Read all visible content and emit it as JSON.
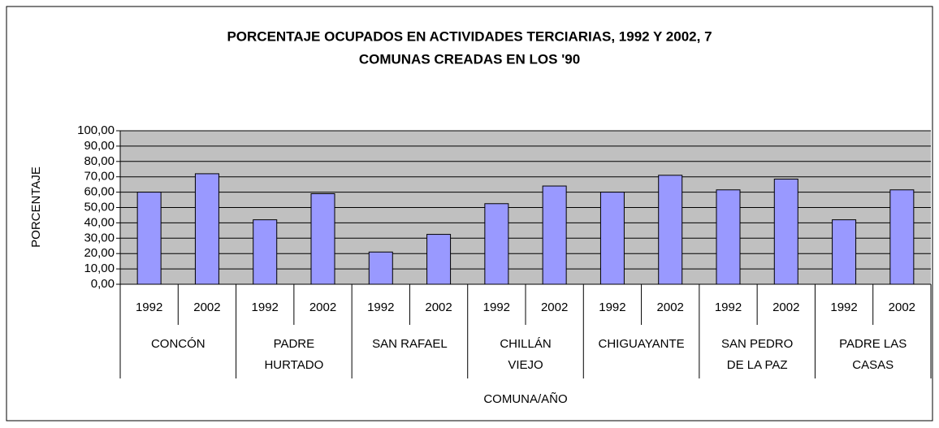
{
  "chart_data": {
    "type": "bar",
    "title": [
      "PORCENTAJE OCUPADOS EN ACTIVIDADES TERCIARIAS, 1992 Y 2002, 7",
      "COMUNAS CREADAS EN LOS '90"
    ],
    "x_label": "COMUNA/AÑO",
    "y_label": "PORCENTAJE",
    "categories": [
      "1992",
      "2002",
      "1992",
      "2002",
      "1992",
      "2002",
      "1992",
      "2002",
      "1992",
      "2002",
      "1992",
      "2002",
      "1992",
      "2002"
    ],
    "groups": [
      [
        "CONCÓN"
      ],
      [
        "PADRE",
        "HURTADO"
      ],
      [
        "SAN RAFAEL"
      ],
      [
        "CHILLÁN",
        "VIEJO"
      ],
      [
        "CHIGUAYANTE"
      ],
      [
        "SAN PEDRO",
        "DE LA PAZ"
      ],
      [
        "PADRE LAS",
        "CASAS"
      ]
    ],
    "values": [
      60,
      72,
      42,
      59,
      21,
      32.5,
      52.5,
      64,
      60,
      71,
      61.5,
      68.5,
      42,
      61.5
    ],
    "color": "#9999ff",
    "ylim": [
      0,
      100
    ],
    "yticks": [
      {
        "value": 0,
        "label": "0,00"
      },
      {
        "value": 10,
        "label": "10,00"
      },
      {
        "value": 20,
        "label": "20,00"
      },
      {
        "value": 30,
        "label": "30,00"
      },
      {
        "value": 40,
        "label": "40,00"
      },
      {
        "value": 50,
        "label": "50,00"
      },
      {
        "value": 60,
        "label": "60,00"
      },
      {
        "value": 70,
        "label": "70,00"
      },
      {
        "value": 80,
        "label": "80,00"
      },
      {
        "value": 90,
        "label": "90,00"
      },
      {
        "value": 100,
        "label": "100,00"
      }
    ],
    "grid": true
  }
}
